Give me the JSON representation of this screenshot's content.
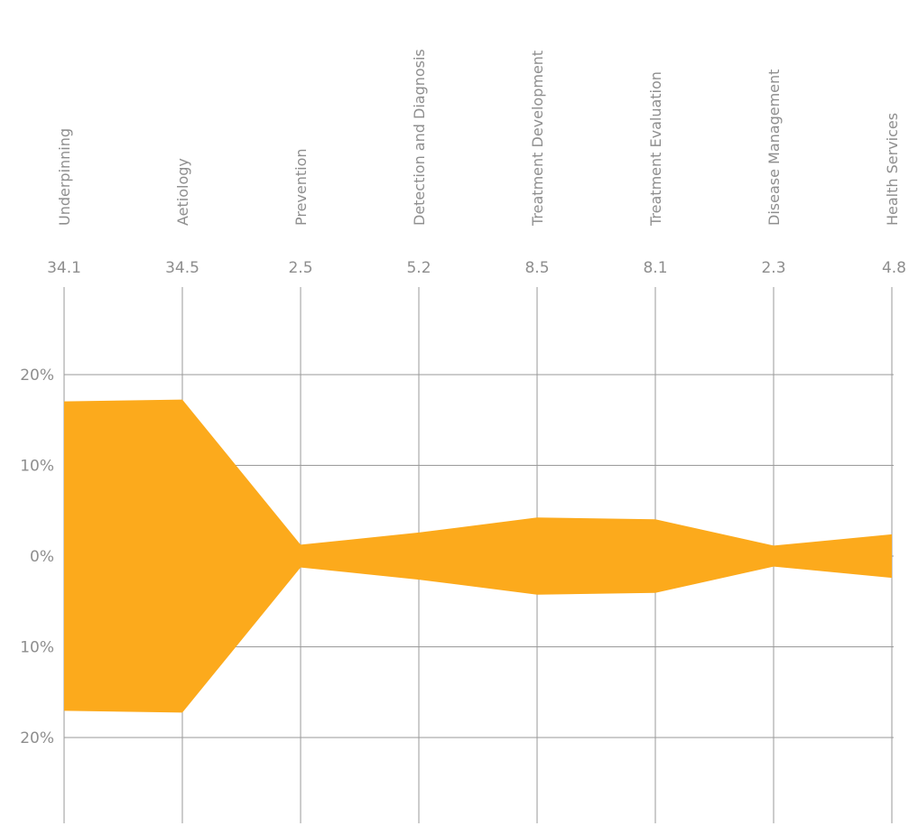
{
  "chart_data": {
    "type": "area",
    "categories": [
      "Underpinning",
      "Aetiology",
      "Prevention",
      "Detection and Diagnosis",
      "Treatment Development",
      "Treatment Evaluation",
      "Disease Management",
      "Health Services"
    ],
    "values": [
      34.1,
      34.5,
      2.5,
      5.2,
      8.5,
      8.1,
      2.3,
      4.8
    ],
    "value_labels": [
      "34.1",
      "34.5",
      "2.5",
      "5.2",
      "8.5",
      "8.1",
      "2.3",
      "4.8"
    ],
    "y_ticks": [
      {
        "value": 20,
        "label": "20%"
      },
      {
        "value": 10,
        "label": "10%"
      },
      {
        "value": 0,
        "label": "0%"
      },
      {
        "value": -10,
        "label": "10%"
      },
      {
        "value": -20,
        "label": "20%"
      }
    ],
    "symmetric": true,
    "ylim": [
      -29,
      29
    ],
    "grid": true,
    "fill_color": "#FCAA1C",
    "grid_color": "#9A9A9A",
    "text_color": "#8E8E8E"
  }
}
